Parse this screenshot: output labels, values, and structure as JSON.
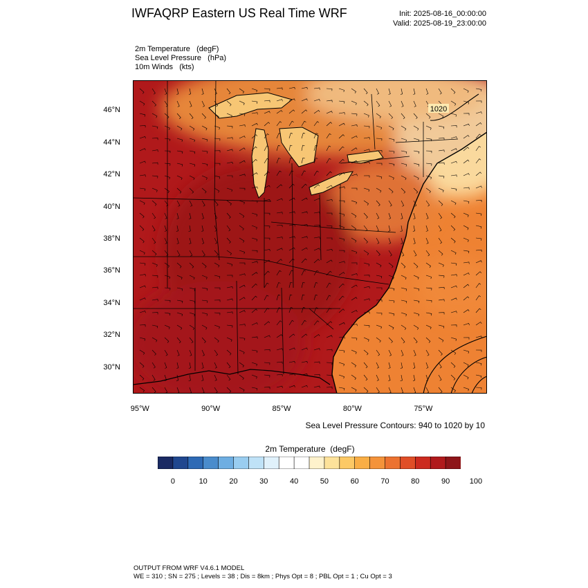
{
  "header": {
    "title": "IWFAQRP Eastern US Real Time WRF",
    "init": "Init: 2025-08-16_00:00:00",
    "valid": "Valid: 2025-08-19_23:00:00"
  },
  "fields": [
    {
      "name": "2m Temperature",
      "units": "(degF)"
    },
    {
      "name": "Sea Level Pressure",
      "units": "(hPa)"
    },
    {
      "name": "10m Winds",
      "units": "(kts)"
    }
  ],
  "map": {
    "lon_range": [
      -95.5,
      -70.5
    ],
    "lat_range": [
      28.4,
      47.9
    ],
    "lat_ticks": [
      "30°N",
      "32°N",
      "34°N",
      "36°N",
      "38°N",
      "40°N",
      "42°N",
      "44°N",
      "46°N"
    ],
    "lon_ticks": [
      "95°W",
      "90°W",
      "85°W",
      "80°W",
      "75°W"
    ],
    "contour_label": "1020",
    "contour_note": "Sea Level Pressure Contours: 940 to 1020 by 10",
    "land_color": "#b0191b",
    "water_color": "#ee8233",
    "lake_color": "#f7c674"
  },
  "colorbar": {
    "title": "2m Temperature",
    "units": "(degF)",
    "colors": [
      "#1a2a63",
      "#20478f",
      "#2e6ab5",
      "#4a8ccc",
      "#6eaee2",
      "#99cdf0",
      "#bfe2f7",
      "#e0f1fb",
      "#ffffff",
      "#ffffff",
      "#fef2cc",
      "#fde29a",
      "#fcc965",
      "#f9ae45",
      "#f4933a",
      "#ec7230",
      "#e04e27",
      "#cc2b1f",
      "#b01a1c",
      "#8e1519"
    ],
    "labels": [
      "0",
      "10",
      "20",
      "30",
      "40",
      "50",
      "60",
      "70",
      "80",
      "90",
      "100"
    ]
  },
  "footer": {
    "line1": "OUTPUT FROM WRF V4.6.1 MODEL",
    "line2": "WE = 310 ; SN = 275 ; Levels = 38 ; Dis = 8km ; Phys Opt = 8 ; PBL Opt = 1 ; Cu Opt = 3"
  }
}
